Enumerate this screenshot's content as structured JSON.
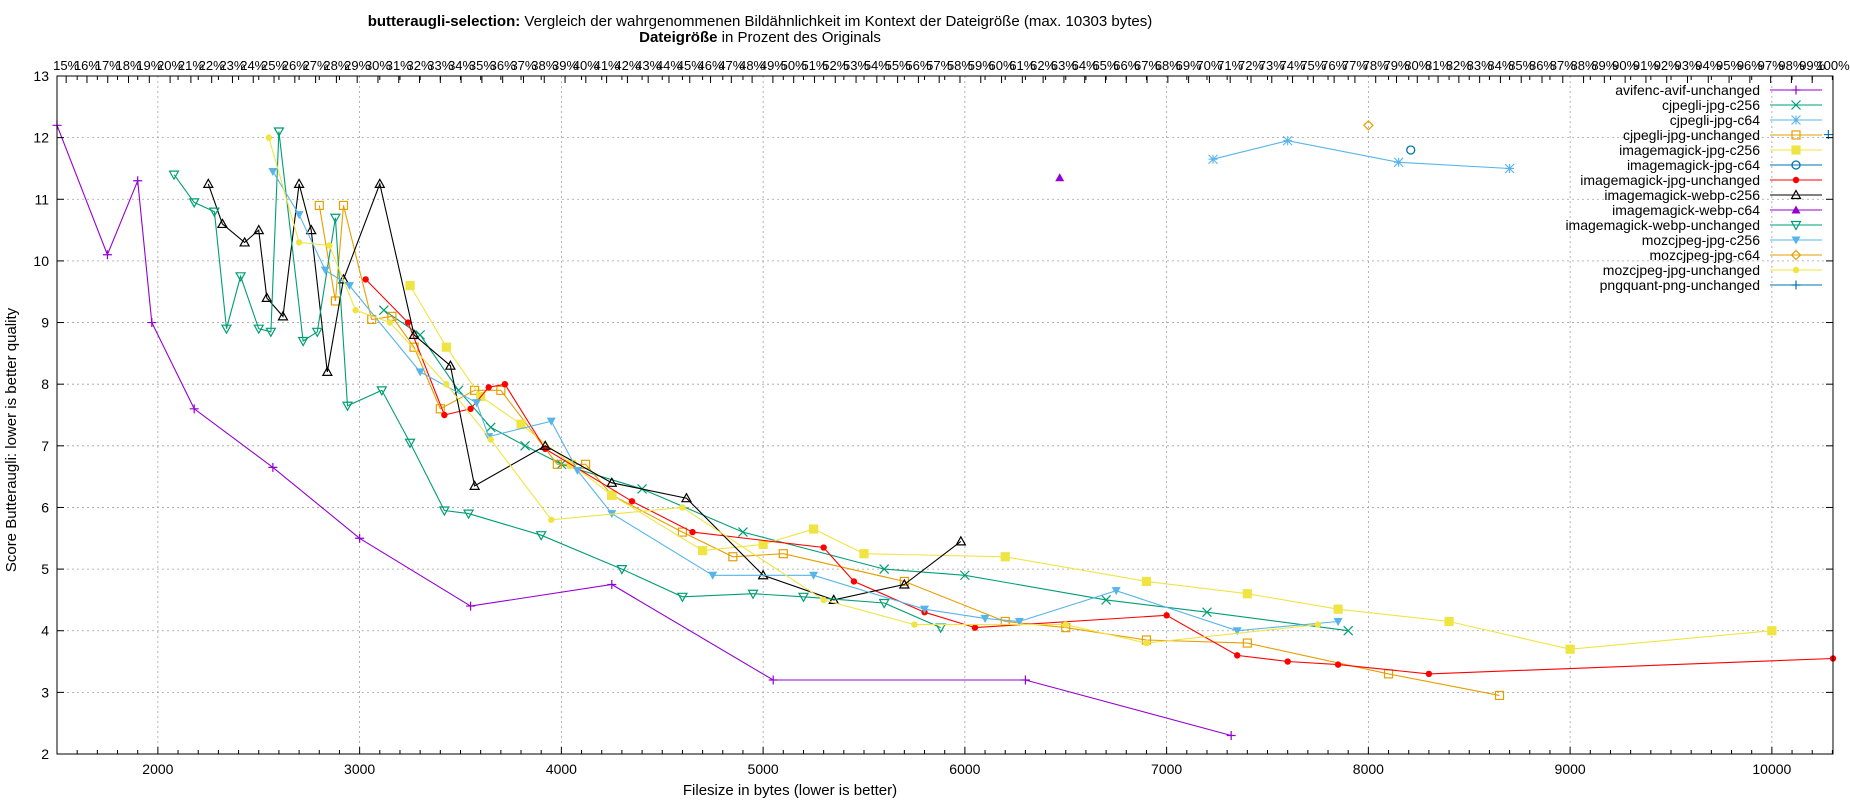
{
  "chart_data": {
    "type": "line",
    "title_bold": "butteraugli-selection:",
    "title_rest": " Vergleich der wahrgenommenen Bildähnlichkeit im Kontext der Dateigröße (max. 10303 bytes)",
    "x2label_bold": "Dateigröße",
    "x2label_rest": " in Prozent des Originals",
    "xlabel_bold": "Filesize",
    "xlabel_rest": " in bytes (lower is better)",
    "ylabel_bold": "Score Butteraugli:",
    "ylabel_rest": " lower is better quality",
    "xlim": [
      1500,
      10303
    ],
    "ylim": [
      2,
      13
    ],
    "xticks": [
      2000,
      3000,
      4000,
      5000,
      6000,
      7000,
      8000,
      9000,
      10000
    ],
    "yticks": [
      2,
      3,
      4,
      5,
      6,
      7,
      8,
      9,
      10,
      11,
      12,
      13
    ],
    "x2ticks": {
      "start": 11,
      "end": 100,
      "step": 1,
      "suffix": "%"
    },
    "grid": true,
    "legend_position": "top-right",
    "series": [
      {
        "name": "avifenc-avif-unchanged",
        "color": "#9400d3",
        "marker": "plus",
        "points": [
          [
            1500,
            12.2
          ],
          [
            1750,
            10.1
          ],
          [
            1900,
            11.3
          ],
          [
            1970,
            9.0
          ],
          [
            2180,
            7.6
          ],
          [
            2570,
            6.65
          ],
          [
            3000,
            5.5
          ],
          [
            3550,
            4.4
          ],
          [
            4250,
            4.75
          ],
          [
            5050,
            3.2
          ],
          [
            6300,
            3.2
          ],
          [
            7320,
            2.3
          ]
        ]
      },
      {
        "name": "cjpegli-jpg-c256",
        "color": "#009e73",
        "marker": "x",
        "points": [
          [
            3120,
            9.2
          ],
          [
            3300,
            8.8
          ],
          [
            3490,
            7.9
          ],
          [
            3650,
            7.3
          ],
          [
            3820,
            7.0
          ],
          [
            4000,
            6.7
          ],
          [
            4400,
            6.3
          ],
          [
            4900,
            5.6
          ],
          [
            5600,
            5.0
          ],
          [
            6000,
            4.9
          ],
          [
            6700,
            4.5
          ],
          [
            7200,
            4.3
          ],
          [
            7900,
            4.0
          ]
        ]
      },
      {
        "name": "cjpegli-jpg-c64",
        "color": "#56b4e9",
        "marker": "star",
        "points": [
          [
            7230,
            11.65
          ],
          [
            7600,
            11.95
          ],
          [
            8150,
            11.6
          ],
          [
            8700,
            11.5
          ]
        ]
      },
      {
        "name": "cjpegli-jpg-unchanged",
        "color": "#e69f00",
        "marker": "square",
        "points": [
          [
            2800,
            10.9
          ],
          [
            2880,
            9.35
          ],
          [
            2920,
            10.9
          ],
          [
            3060,
            9.05
          ],
          [
            3160,
            9.1
          ],
          [
            3270,
            8.6
          ],
          [
            3400,
            7.6
          ],
          [
            3570,
            7.9
          ],
          [
            3700,
            7.9
          ],
          [
            3980,
            6.7
          ],
          [
            4120,
            6.7
          ],
          [
            4250,
            6.2
          ],
          [
            4600,
            5.6
          ],
          [
            4850,
            5.2
          ],
          [
            5100,
            5.25
          ],
          [
            5700,
            4.8
          ],
          [
            6200,
            4.15
          ],
          [
            6500,
            4.05
          ],
          [
            6900,
            3.85
          ],
          [
            7400,
            3.8
          ],
          [
            8100,
            3.3
          ],
          [
            8650,
            2.95
          ]
        ]
      },
      {
        "name": "imagemagick-jpg-c256",
        "color": "#f0e442",
        "marker": "square",
        "points": [
          [
            3250,
            9.6
          ],
          [
            3430,
            8.6
          ],
          [
            3600,
            7.8
          ],
          [
            3800,
            7.35
          ],
          [
            4050,
            6.7
          ],
          [
            4250,
            6.2
          ],
          [
            4700,
            5.3
          ],
          [
            5000,
            5.4
          ],
          [
            5250,
            5.65
          ],
          [
            5500,
            5.25
          ],
          [
            6200,
            5.2
          ],
          [
            6900,
            4.8
          ],
          [
            7400,
            4.6
          ],
          [
            7850,
            4.35
          ],
          [
            8400,
            4.15
          ],
          [
            9000,
            3.7
          ],
          [
            10000,
            4.0
          ]
        ]
      },
      {
        "name": "imagemagick-jpg-c64",
        "color": "#0072b2",
        "marker": "circle",
        "points": [
          [
            8210,
            11.8
          ]
        ]
      },
      {
        "name": "imagemagick-jpg-unchanged",
        "color": "#ff0000",
        "marker": "filledcircle",
        "points": [
          [
            3030,
            9.7
          ],
          [
            3240,
            9.0
          ],
          [
            3420,
            7.5
          ],
          [
            3550,
            7.6
          ],
          [
            3640,
            7.95
          ],
          [
            3720,
            8.0
          ],
          [
            3920,
            6.95
          ],
          [
            4350,
            6.1
          ],
          [
            4650,
            5.6
          ],
          [
            5300,
            5.35
          ],
          [
            5450,
            4.8
          ],
          [
            5800,
            4.3
          ],
          [
            6050,
            4.05
          ],
          [
            7000,
            4.25
          ],
          [
            7350,
            3.6
          ],
          [
            7600,
            3.5
          ],
          [
            7850,
            3.45
          ],
          [
            8300,
            3.3
          ],
          [
            10303,
            3.55
          ]
        ]
      },
      {
        "name": "imagemagick-webp-c256",
        "color": "#000000",
        "marker": "triangle",
        "points": [
          [
            2250,
            11.25
          ],
          [
            2320,
            10.6
          ],
          [
            2430,
            10.3
          ],
          [
            2500,
            10.5
          ],
          [
            2540,
            9.4
          ],
          [
            2620,
            9.1
          ],
          [
            2700,
            11.25
          ],
          [
            2760,
            10.5
          ],
          [
            2840,
            8.2
          ],
          [
            2920,
            9.7
          ],
          [
            3100,
            11.25
          ],
          [
            3270,
            8.8
          ],
          [
            3450,
            8.3
          ],
          [
            3570,
            6.35
          ],
          [
            3920,
            7.0
          ],
          [
            4250,
            6.4
          ],
          [
            4620,
            6.15
          ],
          [
            5000,
            4.9
          ],
          [
            5350,
            4.5
          ],
          [
            5700,
            4.75
          ],
          [
            5980,
            5.45
          ]
        ]
      },
      {
        "name": "imagemagick-webp-c64",
        "color": "#9400d3",
        "marker": "filledtriangle",
        "points": [
          [
            6470,
            11.35
          ]
        ]
      },
      {
        "name": "imagemagick-webp-unchanged",
        "color": "#009e73",
        "marker": "invtriangle",
        "points": [
          [
            2080,
            11.4
          ],
          [
            2180,
            10.95
          ],
          [
            2280,
            10.8
          ],
          [
            2340,
            8.9
          ],
          [
            2410,
            9.75
          ],
          [
            2500,
            8.9
          ],
          [
            2560,
            8.85
          ],
          [
            2600,
            12.1
          ],
          [
            2720,
            8.7
          ],
          [
            2790,
            8.85
          ],
          [
            2880,
            10.7
          ],
          [
            2940,
            7.65
          ],
          [
            3110,
            7.9
          ],
          [
            3250,
            7.05
          ],
          [
            3420,
            5.95
          ],
          [
            3540,
            5.9
          ],
          [
            3900,
            5.55
          ],
          [
            4300,
            5.0
          ],
          [
            4600,
            4.55
          ],
          [
            4950,
            4.6
          ],
          [
            5200,
            4.55
          ],
          [
            5600,
            4.45
          ],
          [
            5880,
            4.05
          ]
        ]
      },
      {
        "name": "mozcjpeg-jpg-c256",
        "color": "#56b4e9",
        "marker": "filledinvtriangle",
        "points": [
          [
            2570,
            11.45
          ],
          [
            2700,
            10.75
          ],
          [
            2830,
            9.85
          ],
          [
            2950,
            9.6
          ],
          [
            3300,
            8.2
          ],
          [
            3580,
            7.7
          ],
          [
            3640,
            7.15
          ],
          [
            3950,
            7.4
          ],
          [
            4080,
            6.6
          ],
          [
            4250,
            5.9
          ],
          [
            4750,
            4.9
          ],
          [
            5250,
            4.9
          ],
          [
            5800,
            4.35
          ],
          [
            6100,
            4.2
          ],
          [
            6270,
            4.15
          ],
          [
            6750,
            4.65
          ],
          [
            7350,
            4.0
          ],
          [
            7850,
            4.15
          ]
        ]
      },
      {
        "name": "mozcjpeg-jpg-c64",
        "color": "#e69f00",
        "marker": "diamond",
        "points": [
          [
            8000,
            12.2
          ]
        ]
      },
      {
        "name": "mozcjpeg-jpg-unchanged",
        "color": "#f0e442",
        "marker": "filledcircle",
        "points": [
          [
            2550,
            12.0
          ],
          [
            2700,
            10.3
          ],
          [
            2850,
            10.25
          ],
          [
            2980,
            9.2
          ],
          [
            3150,
            9.0
          ],
          [
            3430,
            8.0
          ],
          [
            3650,
            7.1
          ],
          [
            3950,
            5.8
          ],
          [
            4600,
            6.0
          ],
          [
            5300,
            4.5
          ],
          [
            5750,
            4.1
          ],
          [
            6500,
            4.1
          ],
          [
            6900,
            3.8
          ],
          [
            7750,
            4.1
          ]
        ]
      },
      {
        "name": "pngquant-png-unchanged",
        "color": "#0072b2",
        "marker": "plus",
        "points": [
          [
            10280,
            12.05
          ]
        ]
      }
    ]
  }
}
